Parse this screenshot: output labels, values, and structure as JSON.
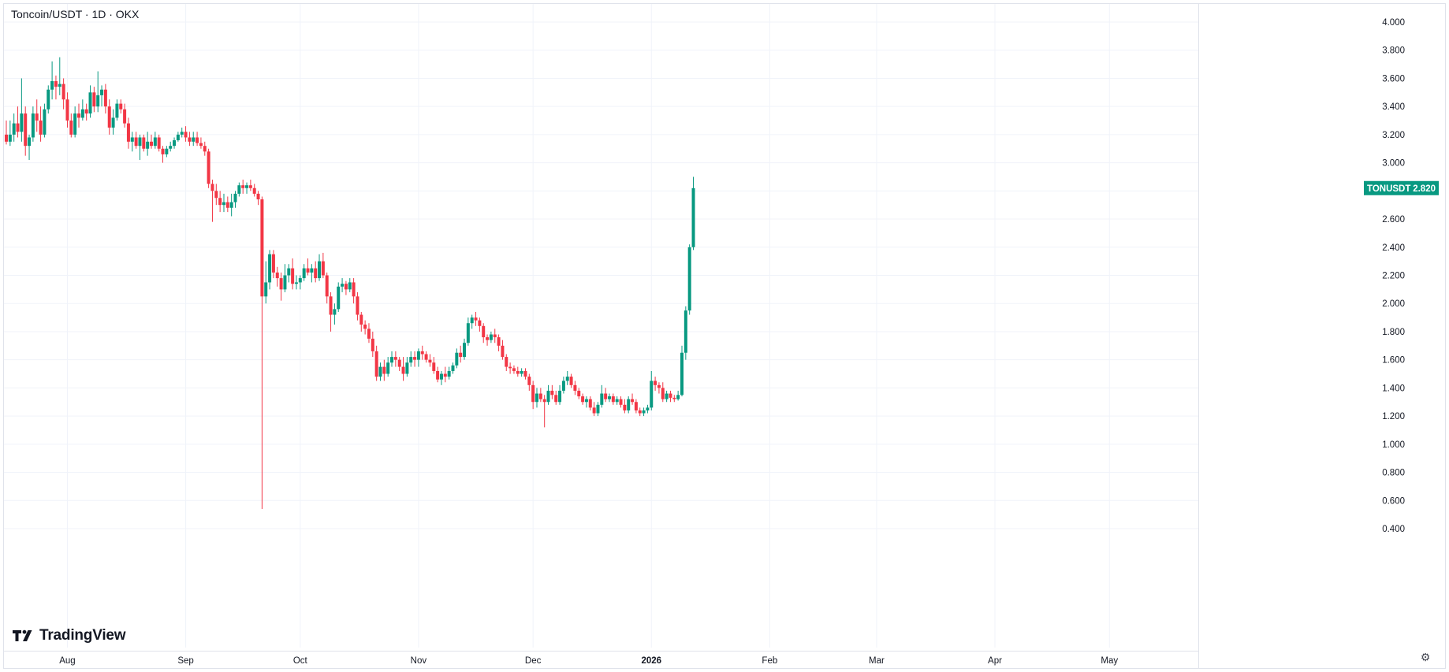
{
  "chart_title": "Toncoin/USDT · 1D · OKX",
  "logo_text": "TradingView",
  "price_label": {
    "symbol": "TONUSDT",
    "value": "2.820"
  },
  "colors": {
    "up": "#089981",
    "down": "#f23645",
    "grid": "#f0f3fa",
    "text": "#131722",
    "badge": "#089981"
  },
  "chart_data": {
    "type": "candlestick",
    "symbol": "TONUSDT",
    "interval": "1D",
    "exchange": "OKX",
    "last_price": 2.82,
    "ylim": [
      0.4,
      4.0
    ],
    "y_ticks": [
      "4.000",
      "3.800",
      "3.600",
      "3.400",
      "3.200",
      "3.000",
      "2.800",
      "2.600",
      "2.400",
      "2.200",
      "2.000",
      "1.800",
      "1.600",
      "1.400",
      "1.200",
      "1.000",
      "0.800",
      "0.600",
      "0.400"
    ],
    "x_ticks": [
      {
        "label": "Aug",
        "date": "2025-08-01",
        "bold": false
      },
      {
        "label": "Sep",
        "date": "2025-09-01",
        "bold": false
      },
      {
        "label": "Oct",
        "date": "2025-10-01",
        "bold": false
      },
      {
        "label": "Nov",
        "date": "2025-11-01",
        "bold": false
      },
      {
        "label": "Dec",
        "date": "2025-12-01",
        "bold": false
      },
      {
        "label": "2026",
        "date": "2026-01-01",
        "bold": true
      },
      {
        "label": "Feb",
        "date": "2026-02-01",
        "bold": false
      },
      {
        "label": "Mar",
        "date": "2026-03-01",
        "bold": false
      },
      {
        "label": "Apr",
        "date": "2026-04-01",
        "bold": false
      },
      {
        "label": "May",
        "date": "2026-05-01",
        "bold": false
      }
    ],
    "x_range": [
      "2025-07-16",
      "2026-05-09"
    ],
    "start_date": "2025-07-16",
    "ohlc": [
      [
        3.2,
        3.3,
        3.13,
        3.15
      ],
      [
        3.15,
        3.3,
        3.12,
        3.2
      ],
      [
        3.2,
        3.35,
        3.15,
        3.28
      ],
      [
        3.28,
        3.4,
        3.18,
        3.22
      ],
      [
        3.22,
        3.6,
        3.15,
        3.35
      ],
      [
        3.35,
        3.4,
        3.05,
        3.12
      ],
      [
        3.12,
        3.2,
        3.02,
        3.18
      ],
      [
        3.18,
        3.4,
        3.15,
        3.35
      ],
      [
        3.35,
        3.45,
        3.22,
        3.3
      ],
      [
        3.3,
        3.4,
        3.15,
        3.2
      ],
      [
        3.2,
        3.42,
        3.18,
        3.38
      ],
      [
        3.38,
        3.55,
        3.35,
        3.52
      ],
      [
        3.52,
        3.72,
        3.45,
        3.58
      ],
      [
        3.58,
        3.62,
        3.45,
        3.54
      ],
      [
        3.54,
        3.75,
        3.48,
        3.56
      ],
      [
        3.56,
        3.6,
        3.38,
        3.45
      ],
      [
        3.45,
        3.5,
        3.25,
        3.3
      ],
      [
        3.3,
        3.35,
        3.18,
        3.2
      ],
      [
        3.2,
        3.4,
        3.18,
        3.35
      ],
      [
        3.35,
        3.42,
        3.25,
        3.32
      ],
      [
        3.32,
        3.45,
        3.3,
        3.38
      ],
      [
        3.38,
        3.42,
        3.3,
        3.35
      ],
      [
        3.35,
        3.55,
        3.32,
        3.5
      ],
      [
        3.5,
        3.54,
        3.36,
        3.4
      ],
      [
        3.4,
        3.65,
        3.36,
        3.48
      ],
      [
        3.48,
        3.55,
        3.4,
        3.52
      ],
      [
        3.52,
        3.56,
        3.35,
        3.4
      ],
      [
        3.4,
        3.45,
        3.2,
        3.25
      ],
      [
        3.25,
        3.38,
        3.2,
        3.32
      ],
      [
        3.32,
        3.45,
        3.3,
        3.42
      ],
      [
        3.42,
        3.45,
        3.35,
        3.38
      ],
      [
        3.38,
        3.42,
        3.25,
        3.28
      ],
      [
        3.28,
        3.32,
        3.1,
        3.15
      ],
      [
        3.15,
        3.22,
        3.08,
        3.18
      ],
      [
        3.18,
        3.22,
        3.1,
        3.12
      ],
      [
        3.12,
        3.2,
        3.02,
        3.18
      ],
      [
        3.18,
        3.2,
        3.08,
        3.1
      ],
      [
        3.1,
        3.22,
        3.05,
        3.15
      ],
      [
        3.15,
        3.2,
        3.1,
        3.12
      ],
      [
        3.12,
        3.22,
        3.1,
        3.18
      ],
      [
        3.18,
        3.2,
        3.08,
        3.1
      ],
      [
        3.1,
        3.12,
        3.0,
        3.06
      ],
      [
        3.06,
        3.12,
        3.04,
        3.1
      ],
      [
        3.1,
        3.15,
        3.08,
        3.12
      ],
      [
        3.12,
        3.18,
        3.1,
        3.16
      ],
      [
        3.16,
        3.22,
        3.15,
        3.2
      ],
      [
        3.2,
        3.25,
        3.18,
        3.22
      ],
      [
        3.22,
        3.26,
        3.15,
        3.18
      ],
      [
        3.18,
        3.22,
        3.12,
        3.15
      ],
      [
        3.15,
        3.22,
        3.12,
        3.18
      ],
      [
        3.18,
        3.22,
        3.12,
        3.14
      ],
      [
        3.14,
        3.18,
        3.1,
        3.12
      ],
      [
        3.12,
        3.15,
        3.05,
        3.08
      ],
      [
        3.08,
        3.1,
        2.82,
        2.85
      ],
      [
        2.85,
        2.88,
        2.58,
        2.8
      ],
      [
        2.8,
        2.85,
        2.7,
        2.75
      ],
      [
        2.75,
        2.8,
        2.65,
        2.7
      ],
      [
        2.7,
        2.78,
        2.65,
        2.72
      ],
      [
        2.72,
        2.76,
        2.65,
        2.68
      ],
      [
        2.68,
        2.78,
        2.62,
        2.72
      ],
      [
        2.72,
        2.8,
        2.68,
        2.78
      ],
      [
        2.78,
        2.86,
        2.76,
        2.84
      ],
      [
        2.84,
        2.88,
        2.78,
        2.82
      ],
      [
        2.82,
        2.86,
        2.78,
        2.84
      ],
      [
        2.84,
        2.88,
        2.8,
        2.82
      ],
      [
        2.82,
        2.85,
        2.76,
        2.78
      ],
      [
        2.78,
        2.8,
        2.7,
        2.74
      ],
      [
        2.74,
        2.76,
        0.54,
        2.05
      ],
      [
        2.05,
        2.3,
        2.0,
        2.15
      ],
      [
        2.15,
        2.38,
        2.1,
        2.35
      ],
      [
        2.35,
        2.38,
        2.18,
        2.22
      ],
      [
        2.22,
        2.26,
        2.12,
        2.18
      ],
      [
        2.18,
        2.22,
        2.02,
        2.1
      ],
      [
        2.1,
        2.28,
        2.08,
        2.2
      ],
      [
        2.2,
        2.28,
        2.15,
        2.25
      ],
      [
        2.25,
        2.32,
        2.1,
        2.14
      ],
      [
        2.14,
        2.2,
        2.1,
        2.15
      ],
      [
        2.15,
        2.2,
        2.1,
        2.18
      ],
      [
        2.18,
        2.28,
        2.16,
        2.25
      ],
      [
        2.25,
        2.32,
        2.2,
        2.22
      ],
      [
        2.22,
        2.28,
        2.15,
        2.25
      ],
      [
        2.25,
        2.3,
        2.15,
        2.18
      ],
      [
        2.18,
        2.35,
        2.16,
        2.3
      ],
      [
        2.3,
        2.36,
        2.18,
        2.2
      ],
      [
        2.2,
        2.22,
        2.0,
        2.05
      ],
      [
        2.05,
        2.08,
        1.8,
        1.92
      ],
      [
        1.92,
        2.0,
        1.85,
        1.96
      ],
      [
        1.96,
        2.15,
        1.94,
        2.12
      ],
      [
        2.12,
        2.18,
        2.08,
        2.14
      ],
      [
        2.14,
        2.16,
        2.06,
        2.1
      ],
      [
        2.1,
        2.18,
        2.08,
        2.15
      ],
      [
        2.15,
        2.18,
        2.0,
        2.05
      ],
      [
        2.05,
        2.08,
        1.88,
        1.92
      ],
      [
        1.92,
        1.94,
        1.8,
        1.85
      ],
      [
        1.85,
        1.88,
        1.78,
        1.82
      ],
      [
        1.82,
        1.86,
        1.72,
        1.75
      ],
      [
        1.75,
        1.8,
        1.62,
        1.66
      ],
      [
        1.66,
        1.7,
        1.45,
        1.48
      ],
      [
        1.48,
        1.58,
        1.45,
        1.55
      ],
      [
        1.55,
        1.6,
        1.45,
        1.5
      ],
      [
        1.5,
        1.62,
        1.48,
        1.58
      ],
      [
        1.58,
        1.66,
        1.55,
        1.62
      ],
      [
        1.62,
        1.66,
        1.55,
        1.6
      ],
      [
        1.6,
        1.62,
        1.52,
        1.55
      ],
      [
        1.55,
        1.62,
        1.45,
        1.5
      ],
      [
        1.5,
        1.62,
        1.48,
        1.58
      ],
      [
        1.58,
        1.66,
        1.55,
        1.62
      ],
      [
        1.62,
        1.66,
        1.55,
        1.6
      ],
      [
        1.6,
        1.68,
        1.55,
        1.66
      ],
      [
        1.66,
        1.7,
        1.6,
        1.64
      ],
      [
        1.64,
        1.66,
        1.58,
        1.6
      ],
      [
        1.6,
        1.64,
        1.55,
        1.58
      ],
      [
        1.58,
        1.62,
        1.5,
        1.52
      ],
      [
        1.52,
        1.55,
        1.44,
        1.46
      ],
      [
        1.46,
        1.52,
        1.42,
        1.5
      ],
      [
        1.5,
        1.55,
        1.44,
        1.48
      ],
      [
        1.48,
        1.55,
        1.46,
        1.52
      ],
      [
        1.52,
        1.58,
        1.5,
        1.56
      ],
      [
        1.56,
        1.68,
        1.54,
        1.65
      ],
      [
        1.65,
        1.7,
        1.58,
        1.62
      ],
      [
        1.62,
        1.75,
        1.6,
        1.72
      ],
      [
        1.72,
        1.9,
        1.7,
        1.86
      ],
      [
        1.86,
        1.92,
        1.82,
        1.9
      ],
      [
        1.9,
        1.94,
        1.84,
        1.88
      ],
      [
        1.88,
        1.9,
        1.8,
        1.84
      ],
      [
        1.84,
        1.86,
        1.72,
        1.76
      ],
      [
        1.76,
        1.78,
        1.7,
        1.74
      ],
      [
        1.74,
        1.8,
        1.72,
        1.78
      ],
      [
        1.78,
        1.82,
        1.72,
        1.76
      ],
      [
        1.76,
        1.78,
        1.66,
        1.7
      ],
      [
        1.7,
        1.74,
        1.6,
        1.62
      ],
      [
        1.62,
        1.64,
        1.52,
        1.55
      ],
      [
        1.55,
        1.58,
        1.5,
        1.54
      ],
      [
        1.54,
        1.56,
        1.5,
        1.52
      ],
      [
        1.52,
        1.55,
        1.48,
        1.5
      ],
      [
        1.5,
        1.54,
        1.48,
        1.52
      ],
      [
        1.52,
        1.54,
        1.46,
        1.48
      ],
      [
        1.48,
        1.5,
        1.38,
        1.42
      ],
      [
        1.42,
        1.45,
        1.25,
        1.3
      ],
      [
        1.3,
        1.4,
        1.26,
        1.36
      ],
      [
        1.36,
        1.4,
        1.3,
        1.32
      ],
      [
        1.32,
        1.35,
        1.12,
        1.3
      ],
      [
        1.3,
        1.42,
        1.28,
        1.38
      ],
      [
        1.38,
        1.42,
        1.32,
        1.35
      ],
      [
        1.35,
        1.38,
        1.28,
        1.3
      ],
      [
        1.3,
        1.42,
        1.28,
        1.38
      ],
      [
        1.38,
        1.48,
        1.36,
        1.45
      ],
      [
        1.45,
        1.52,
        1.42,
        1.48
      ],
      [
        1.48,
        1.5,
        1.4,
        1.42
      ],
      [
        1.42,
        1.45,
        1.35,
        1.38
      ],
      [
        1.38,
        1.4,
        1.32,
        1.34
      ],
      [
        1.34,
        1.36,
        1.28,
        1.3
      ],
      [
        1.3,
        1.34,
        1.26,
        1.32
      ],
      [
        1.32,
        1.34,
        1.24,
        1.26
      ],
      [
        1.26,
        1.3,
        1.2,
        1.22
      ],
      [
        1.22,
        1.3,
        1.2,
        1.28
      ],
      [
        1.28,
        1.42,
        1.26,
        1.36
      ],
      [
        1.36,
        1.4,
        1.3,
        1.32
      ],
      [
        1.32,
        1.36,
        1.3,
        1.34
      ],
      [
        1.34,
        1.36,
        1.28,
        1.3
      ],
      [
        1.3,
        1.34,
        1.28,
        1.32
      ],
      [
        1.32,
        1.34,
        1.26,
        1.28
      ],
      [
        1.28,
        1.32,
        1.22,
        1.24
      ],
      [
        1.24,
        1.34,
        1.22,
        1.32
      ],
      [
        1.32,
        1.36,
        1.28,
        1.3
      ],
      [
        1.3,
        1.32,
        1.22,
        1.24
      ],
      [
        1.24,
        1.26,
        1.2,
        1.22
      ],
      [
        1.22,
        1.26,
        1.2,
        1.24
      ],
      [
        1.24,
        1.28,
        1.22,
        1.26
      ],
      [
        1.26,
        1.52,
        1.24,
        1.45
      ],
      [
        1.45,
        1.48,
        1.38,
        1.42
      ],
      [
        1.42,
        1.44,
        1.36,
        1.4
      ],
      [
        1.4,
        1.44,
        1.3,
        1.32
      ],
      [
        1.32,
        1.38,
        1.3,
        1.36
      ],
      [
        1.36,
        1.38,
        1.3,
        1.33
      ],
      [
        1.33,
        1.35,
        1.3,
        1.32
      ],
      [
        1.32,
        1.38,
        1.31,
        1.35
      ],
      [
        1.35,
        1.7,
        1.34,
        1.65
      ],
      [
        1.65,
        1.98,
        1.6,
        1.95
      ],
      [
        1.95,
        2.42,
        1.92,
        2.4
      ],
      [
        2.4,
        2.9,
        2.38,
        2.82
      ]
    ],
    "ohlc_x_step_days": 1.0,
    "ohlc_note_ignore": ""
  }
}
